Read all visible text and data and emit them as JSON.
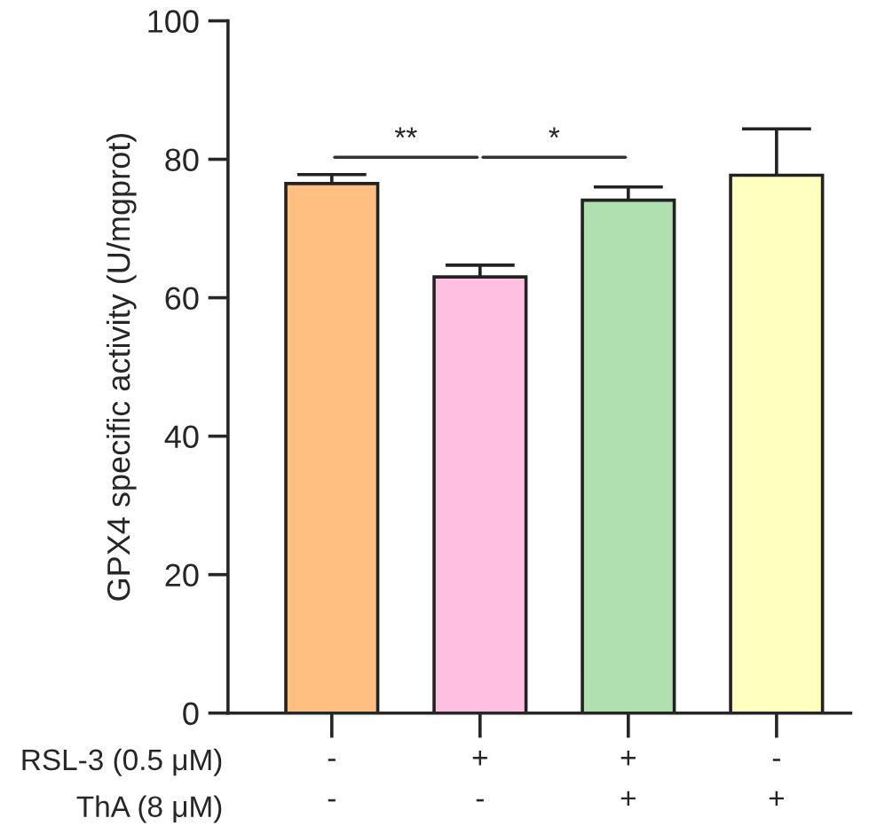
{
  "chart_data": {
    "type": "bar",
    "ylabel": "GPX4 specific activity (U/mgprot)",
    "categories": [
      "-\n-",
      "+\n-",
      "+\n+",
      "-\n+"
    ],
    "values": [
      76.5,
      63.0,
      74.1,
      77.7
    ],
    "errors": [
      1.3,
      1.7,
      1.9,
      6.7
    ],
    "colors": [
      "#ffbf80",
      "#ffbfe0",
      "#b0e0b0",
      "#ffffc0"
    ],
    "ylim": [
      0,
      100
    ],
    "yticks": [
      0,
      20,
      40,
      60,
      80,
      100
    ],
    "annotations": [
      "**",
      "*",
      "RSL-3 (0.5 μM)",
      "ThA (8 μM)"
    ],
    "grid": false,
    "legend": false
  }
}
